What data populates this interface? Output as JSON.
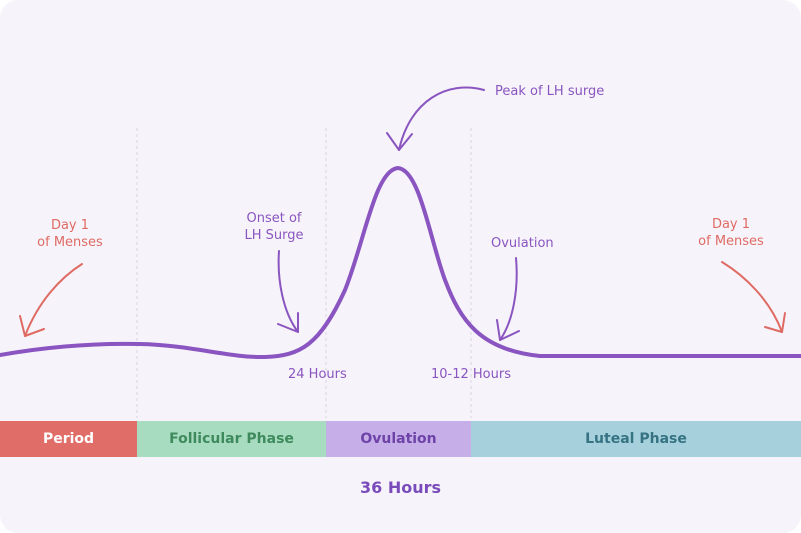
{
  "annotations": {
    "day1_left": [
      "Day 1",
      "of Menses"
    ],
    "day1_right": [
      "Day 1",
      "of Menses"
    ],
    "onset": [
      "Onset of",
      "LH Surge"
    ],
    "peak": "Peak of LH surge",
    "ovulation": "Ovulation",
    "hours_24": "24 Hours",
    "hours_10_12": "10-12 Hours"
  },
  "phases": [
    {
      "label": "Period",
      "color": "#e06d67",
      "text_color": "#ffffff"
    },
    {
      "label": "Follicular Phase",
      "color": "#a8dcc0",
      "text_color": "#3e8a5c"
    },
    {
      "label": "Ovulation",
      "color": "#c6aee8",
      "text_color": "#6e43a8"
    },
    {
      "label": "Luteal Phase",
      "color": "#a6d0dc",
      "text_color": "#357383"
    }
  ],
  "total_duration": "36 Hours",
  "colors": {
    "curve": "#8a55c0",
    "menses_arrow": "#df6a64",
    "guide_lines": "#d8d3e3",
    "background": "#f6f4fa"
  }
}
